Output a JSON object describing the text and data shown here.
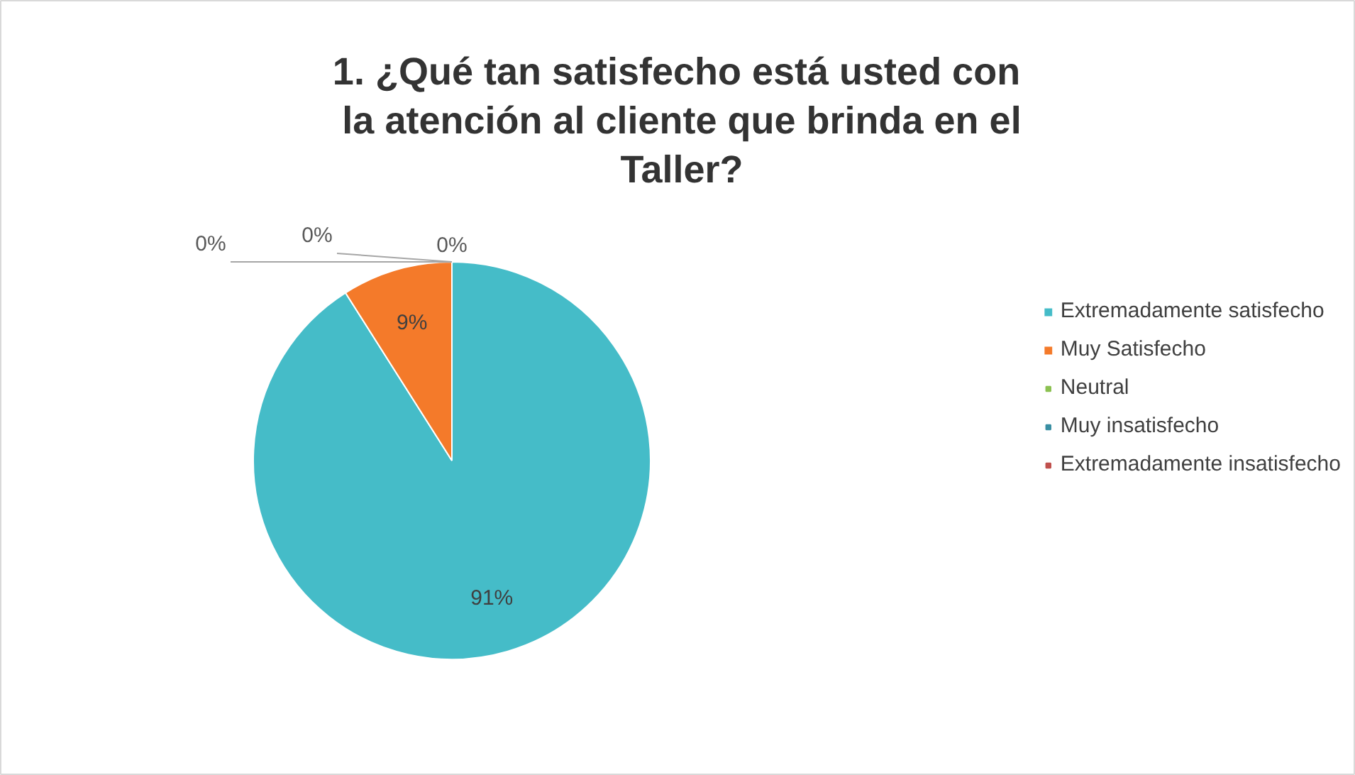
{
  "chart_data": {
    "type": "pie",
    "title": "1.  ¿Qué tan satisfecho está usted con la atención al cliente que brinda en el Taller?",
    "categories": [
      "Extremadamente satisfecho",
      "Muy Satisfecho",
      "Neutral",
      "Muy insatisfecho",
      "Extremadamente insatisfecho"
    ],
    "values": [
      91,
      9,
      0,
      0,
      0
    ],
    "colors": [
      "#45bcc8",
      "#f47a2a",
      "#8cc152",
      "#3a8fa3",
      "#c0504d"
    ],
    "value_labels": [
      "91%",
      "9%",
      "0%",
      "0%",
      "0%"
    ],
    "legend": "right"
  }
}
